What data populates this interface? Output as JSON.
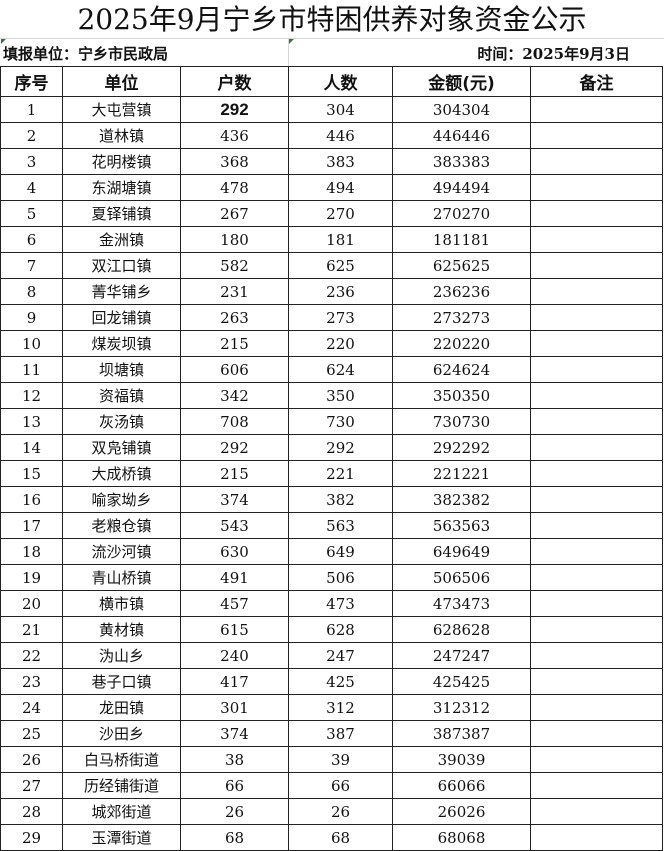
{
  "title": "2025年9月宁乡市特困供养对象资金公示",
  "info": {
    "unit": "填报单位：宁乡市民政局",
    "date": "时间：2025年9月3日"
  },
  "headers": [
    "序号",
    "单位",
    "户数",
    "人数",
    "金额(元)",
    "备注"
  ],
  "rows": [
    [
      "1",
      "大屯营镇",
      "292",
      "304",
      "304304",
      ""
    ],
    [
      "2",
      "道林镇",
      "436",
      "446",
      "446446",
      ""
    ],
    [
      "3",
      "花明楼镇",
      "368",
      "383",
      "383383",
      ""
    ],
    [
      "4",
      "东湖塘镇",
      "478",
      "494",
      "494494",
      ""
    ],
    [
      "5",
      "夏铎铺镇",
      "267",
      "270",
      "270270",
      ""
    ],
    [
      "6",
      "金洲镇",
      "180",
      "181",
      "181181",
      ""
    ],
    [
      "7",
      "双江口镇",
      "582",
      "625",
      "625625",
      ""
    ],
    [
      "8",
      "菁华铺乡",
      "231",
      "236",
      "236236",
      ""
    ],
    [
      "9",
      "回龙铺镇",
      "263",
      "273",
      "273273",
      ""
    ],
    [
      "10",
      "煤炭坝镇",
      "215",
      "220",
      "220220",
      ""
    ],
    [
      "11",
      "坝塘镇",
      "606",
      "624",
      "624624",
      ""
    ],
    [
      "12",
      "资福镇",
      "342",
      "350",
      "350350",
      ""
    ],
    [
      "13",
      "灰汤镇",
      "708",
      "730",
      "730730",
      ""
    ],
    [
      "14",
      "双凫铺镇",
      "292",
      "292",
      "292292",
      ""
    ],
    [
      "15",
      "大成桥镇",
      "215",
      "221",
      "221221",
      ""
    ],
    [
      "16",
      "喻家坳乡",
      "374",
      "382",
      "382382",
      ""
    ],
    [
      "17",
      "老粮仓镇",
      "543",
      "563",
      "563563",
      ""
    ],
    [
      "18",
      "流沙河镇",
      "630",
      "649",
      "649649",
      ""
    ],
    [
      "19",
      "青山桥镇",
      "491",
      "506",
      "506506",
      ""
    ],
    [
      "20",
      "横市镇",
      "457",
      "473",
      "473473",
      ""
    ],
    [
      "21",
      "黄材镇",
      "615",
      "628",
      "628628",
      ""
    ],
    [
      "22",
      "沩山乡",
      "240",
      "247",
      "247247",
      ""
    ],
    [
      "23",
      "巷子口镇",
      "417",
      "425",
      "425425",
      ""
    ],
    [
      "24",
      "龙田镇",
      "301",
      "312",
      "312312",
      ""
    ],
    [
      "25",
      "沙田乡",
      "374",
      "387",
      "387387",
      ""
    ],
    [
      "26",
      "白马桥街道",
      "38",
      "39",
      "39039",
      ""
    ],
    [
      "27",
      "历经铺街道",
      "66",
      "66",
      "66066",
      ""
    ],
    [
      "28",
      "城郊街道",
      "26",
      "26",
      "26026",
      ""
    ],
    [
      "29",
      "玉潭街道",
      "68",
      "68",
      "68068",
      ""
    ]
  ]
}
